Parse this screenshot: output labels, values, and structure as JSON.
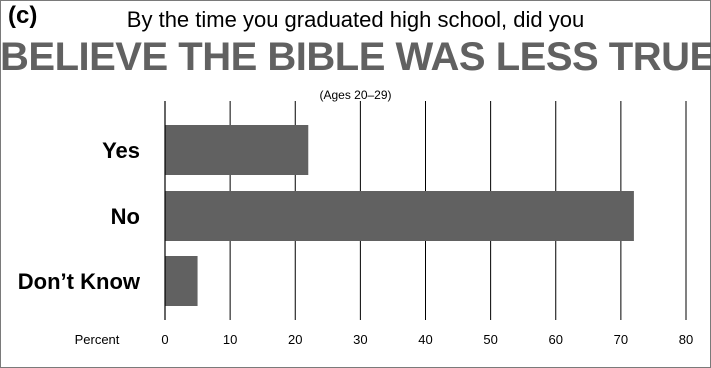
{
  "chart_data": {
    "type": "bar",
    "orientation": "horizontal",
    "panel_label": "(c)",
    "subtitle": "By the time you graduated high school, did you",
    "title": "BELIEVE THE BIBLE WAS LESS TRUE?",
    "note": "(Ages 20–29)",
    "categories": [
      "Yes",
      "No",
      "Don’t Know"
    ],
    "values": [
      22,
      72,
      5
    ],
    "xlabel": "Percent",
    "xlim": [
      0,
      80
    ],
    "xticks": [
      0,
      10,
      20,
      30,
      40,
      50,
      60,
      70,
      80
    ],
    "grid": true,
    "legend": "none",
    "bar_color": "#616161"
  }
}
